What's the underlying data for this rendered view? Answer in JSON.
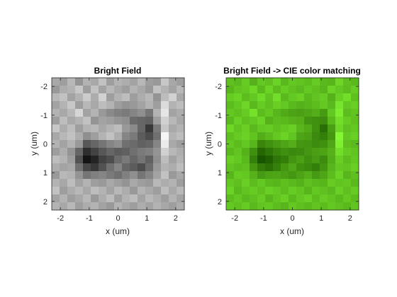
{
  "chart_data": [
    {
      "type": "heatmap",
      "title": "Bright Field",
      "xlabel": "x (um)",
      "ylabel": "y (um)",
      "xlim": [
        -2.3,
        2.3
      ],
      "ylim": [
        -2.3,
        2.3
      ],
      "y_direction": "reverse",
      "x_ticks": [
        -2,
        -1,
        0,
        1,
        2
      ],
      "y_ticks": [
        -2,
        -1,
        0,
        1,
        2
      ],
      "x_tick_labels": [
        "-2",
        "-1",
        "0",
        "1",
        "2"
      ],
      "y_tick_labels": [
        "-2",
        "-1",
        "0",
        "1",
        "2"
      ],
      "colormap": "gray",
      "grid": false,
      "rows": 17,
      "cols": 17,
      "values": [
        [
          0.66,
          0.62,
          0.72,
          0.58,
          0.7,
          0.66,
          0.76,
          0.62,
          0.7,
          0.68,
          0.64,
          0.72,
          0.62,
          0.6,
          0.78,
          0.66,
          0.62
        ],
        [
          0.6,
          0.68,
          0.7,
          0.78,
          0.62,
          0.76,
          0.64,
          0.72,
          0.66,
          0.62,
          0.7,
          0.66,
          0.6,
          0.76,
          0.7,
          0.64,
          0.72
        ],
        [
          0.72,
          0.76,
          0.64,
          0.7,
          0.8,
          0.68,
          0.82,
          0.62,
          0.7,
          0.74,
          0.62,
          0.68,
          0.72,
          0.58,
          0.74,
          0.82,
          0.66
        ],
        [
          0.64,
          0.7,
          0.78,
          0.62,
          0.72,
          0.66,
          0.74,
          0.7,
          0.62,
          0.58,
          0.6,
          0.64,
          0.7,
          0.62,
          0.86,
          0.7,
          0.74
        ],
        [
          0.7,
          0.66,
          0.72,
          0.84,
          0.64,
          0.7,
          0.6,
          0.54,
          0.5,
          0.48,
          0.52,
          0.56,
          0.46,
          0.7,
          0.9,
          0.64,
          0.68
        ],
        [
          0.62,
          0.74,
          0.66,
          0.7,
          0.76,
          0.58,
          0.64,
          0.62,
          0.58,
          0.56,
          0.42,
          0.4,
          0.38,
          0.62,
          0.82,
          0.72,
          0.66
        ],
        [
          0.78,
          0.68,
          0.74,
          0.62,
          0.7,
          0.72,
          0.66,
          0.7,
          0.74,
          0.6,
          0.54,
          0.4,
          0.22,
          0.48,
          0.78,
          0.66,
          0.7
        ],
        [
          0.66,
          0.72,
          0.76,
          0.68,
          0.56,
          0.62,
          0.7,
          0.76,
          0.68,
          0.52,
          0.48,
          0.36,
          0.3,
          0.44,
          0.96,
          0.7,
          0.74
        ],
        [
          0.7,
          0.64,
          0.7,
          0.6,
          0.34,
          0.4,
          0.46,
          0.52,
          0.56,
          0.44,
          0.42,
          0.38,
          0.4,
          0.52,
          0.92,
          0.66,
          0.62
        ],
        [
          0.62,
          0.68,
          0.58,
          0.4,
          0.18,
          0.26,
          0.34,
          0.4,
          0.36,
          0.38,
          0.44,
          0.48,
          0.5,
          0.58,
          0.82,
          0.72,
          0.68
        ],
        [
          0.74,
          0.7,
          0.62,
          0.32,
          0.08,
          0.14,
          0.26,
          0.3,
          0.42,
          0.48,
          0.4,
          0.46,
          0.38,
          0.56,
          0.74,
          0.64,
          0.7
        ],
        [
          0.68,
          0.64,
          0.66,
          0.44,
          0.28,
          0.22,
          0.32,
          0.44,
          0.52,
          0.4,
          0.36,
          0.3,
          0.42,
          0.6,
          0.7,
          0.68,
          0.74
        ],
        [
          0.6,
          0.72,
          0.7,
          0.58,
          0.46,
          0.5,
          0.52,
          0.48,
          0.44,
          0.5,
          0.56,
          0.46,
          0.52,
          0.64,
          0.76,
          0.6,
          0.66
        ],
        [
          0.7,
          0.66,
          0.74,
          0.64,
          0.7,
          0.62,
          0.6,
          0.66,
          0.62,
          0.58,
          0.66,
          0.62,
          0.6,
          0.72,
          0.68,
          0.7,
          0.62
        ],
        [
          0.76,
          0.62,
          0.68,
          0.72,
          0.66,
          0.74,
          0.7,
          0.64,
          0.72,
          0.68,
          0.6,
          0.7,
          0.66,
          0.62,
          0.74,
          0.66,
          0.72
        ],
        [
          0.64,
          0.7,
          0.62,
          0.66,
          0.72,
          0.6,
          0.68,
          0.74,
          0.62,
          0.7,
          0.74,
          0.64,
          0.72,
          0.68,
          0.62,
          0.7,
          0.64
        ],
        [
          0.7,
          0.66,
          0.72,
          0.62,
          0.68,
          0.7,
          0.64,
          0.6,
          0.7,
          0.66,
          0.62,
          0.68,
          0.64,
          0.7,
          0.66,
          0.62,
          0.68
        ]
      ]
    },
    {
      "type": "heatmap",
      "title": "Bright Field -> CIE color matching",
      "xlabel": "x (um)",
      "ylabel": "y (um)",
      "xlim": [
        -2.3,
        2.3
      ],
      "ylim": [
        -2.3,
        2.3
      ],
      "y_direction": "reverse",
      "x_ticks": [
        -2,
        -1,
        0,
        1,
        2
      ],
      "y_ticks": [
        -2,
        -1,
        0,
        1,
        2
      ],
      "x_tick_labels": [
        "-2",
        "-1",
        "0",
        "1",
        "2"
      ],
      "y_tick_labels": [
        "-2",
        "-1",
        "0",
        "1",
        "2"
      ],
      "colormap": "green-rgb",
      "grid": false,
      "rows": 17,
      "cols": 17,
      "values": [
        [
          0.66,
          0.62,
          0.72,
          0.58,
          0.7,
          0.66,
          0.76,
          0.62,
          0.7,
          0.68,
          0.64,
          0.72,
          0.62,
          0.6,
          0.78,
          0.66,
          0.62
        ],
        [
          0.6,
          0.68,
          0.7,
          0.78,
          0.62,
          0.76,
          0.64,
          0.72,
          0.66,
          0.62,
          0.7,
          0.66,
          0.6,
          0.76,
          0.7,
          0.64,
          0.72
        ],
        [
          0.72,
          0.76,
          0.64,
          0.7,
          0.8,
          0.68,
          0.82,
          0.62,
          0.7,
          0.74,
          0.62,
          0.68,
          0.72,
          0.58,
          0.74,
          0.82,
          0.66
        ],
        [
          0.64,
          0.7,
          0.78,
          0.62,
          0.72,
          0.66,
          0.74,
          0.7,
          0.62,
          0.58,
          0.6,
          0.64,
          0.7,
          0.62,
          0.86,
          0.7,
          0.74
        ],
        [
          0.7,
          0.66,
          0.72,
          0.84,
          0.64,
          0.7,
          0.6,
          0.54,
          0.5,
          0.48,
          0.52,
          0.56,
          0.46,
          0.7,
          0.9,
          0.64,
          0.68
        ],
        [
          0.62,
          0.74,
          0.66,
          0.7,
          0.76,
          0.58,
          0.64,
          0.62,
          0.58,
          0.56,
          0.42,
          0.4,
          0.38,
          0.62,
          0.82,
          0.72,
          0.66
        ],
        [
          0.78,
          0.68,
          0.74,
          0.62,
          0.7,
          0.72,
          0.66,
          0.7,
          0.74,
          0.6,
          0.54,
          0.4,
          0.22,
          0.48,
          0.78,
          0.66,
          0.7
        ],
        [
          0.66,
          0.72,
          0.76,
          0.68,
          0.56,
          0.62,
          0.7,
          0.76,
          0.68,
          0.52,
          0.48,
          0.36,
          0.3,
          0.44,
          0.96,
          0.7,
          0.74
        ],
        [
          0.7,
          0.64,
          0.7,
          0.6,
          0.34,
          0.4,
          0.46,
          0.52,
          0.56,
          0.44,
          0.42,
          0.38,
          0.4,
          0.52,
          0.92,
          0.66,
          0.62
        ],
        [
          0.62,
          0.68,
          0.58,
          0.4,
          0.18,
          0.26,
          0.34,
          0.4,
          0.36,
          0.38,
          0.44,
          0.48,
          0.5,
          0.58,
          0.82,
          0.72,
          0.68
        ],
        [
          0.74,
          0.7,
          0.62,
          0.32,
          0.08,
          0.14,
          0.26,
          0.3,
          0.42,
          0.48,
          0.4,
          0.46,
          0.38,
          0.56,
          0.74,
          0.64,
          0.7
        ],
        [
          0.68,
          0.64,
          0.66,
          0.44,
          0.28,
          0.22,
          0.32,
          0.44,
          0.52,
          0.4,
          0.36,
          0.3,
          0.42,
          0.6,
          0.7,
          0.68,
          0.74
        ],
        [
          0.6,
          0.72,
          0.7,
          0.58,
          0.46,
          0.5,
          0.52,
          0.48,
          0.44,
          0.5,
          0.56,
          0.46,
          0.52,
          0.64,
          0.76,
          0.6,
          0.66
        ],
        [
          0.7,
          0.66,
          0.74,
          0.64,
          0.7,
          0.62,
          0.6,
          0.66,
          0.62,
          0.58,
          0.66,
          0.62,
          0.6,
          0.72,
          0.68,
          0.7,
          0.62
        ],
        [
          0.76,
          0.62,
          0.68,
          0.72,
          0.66,
          0.74,
          0.7,
          0.64,
          0.72,
          0.68,
          0.6,
          0.7,
          0.66,
          0.62,
          0.74,
          0.66,
          0.72
        ],
        [
          0.64,
          0.7,
          0.62,
          0.66,
          0.72,
          0.6,
          0.68,
          0.74,
          0.62,
          0.7,
          0.74,
          0.64,
          0.72,
          0.68,
          0.62,
          0.7,
          0.64
        ],
        [
          0.7,
          0.66,
          0.72,
          0.62,
          0.68,
          0.7,
          0.64,
          0.6,
          0.7,
          0.66,
          0.62,
          0.68,
          0.64,
          0.7,
          0.66,
          0.62,
          0.68
        ]
      ]
    }
  ]
}
